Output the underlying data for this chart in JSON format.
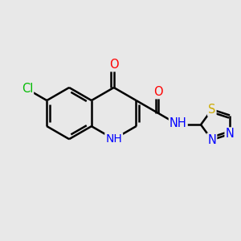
{
  "bg_color": "#e8e8e8",
  "bond_color": "#000000",
  "bond_width": 1.8,
  "atom_colors": {
    "O": "#ff0000",
    "N": "#0000ff",
    "Cl": "#00bb00",
    "S": "#ccaa00",
    "C": "#000000",
    "H": "#000000"
  },
  "font_size": 10.5
}
